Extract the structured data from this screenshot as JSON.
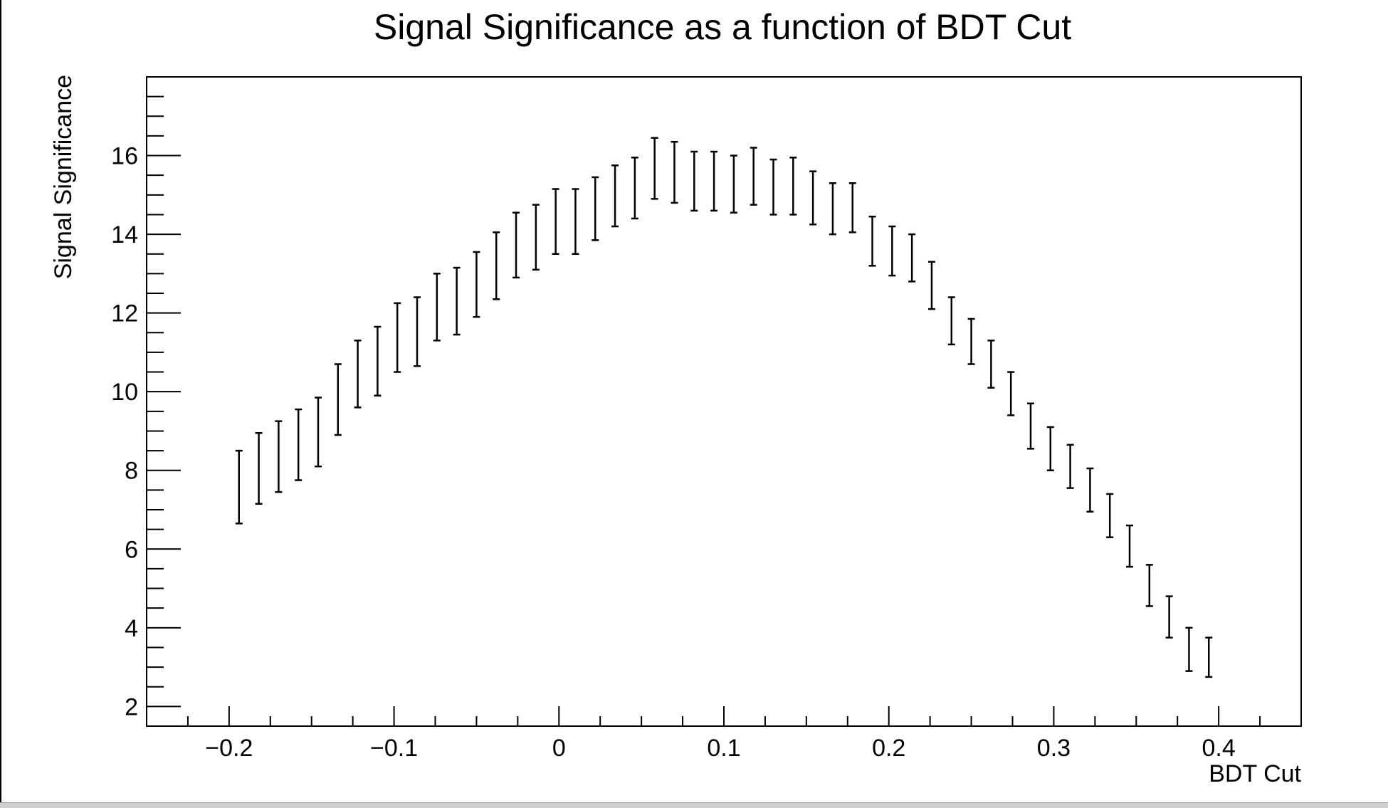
{
  "chart_data": {
    "type": "scatter",
    "title": "Signal Significance as a function of BDT Cut",
    "xlabel": "BDT Cut",
    "ylabel": "Signal Significance",
    "xlim": [
      -0.25,
      0.45
    ],
    "ylim": [
      1.5,
      18.0
    ],
    "xticks": [
      -0.2,
      -0.1,
      0,
      0.1,
      0.2,
      0.3,
      0.4
    ],
    "xtick_labels": [
      "−0.2",
      "−0.1",
      "0",
      "0.1",
      "0.2",
      "0.3",
      "0.4"
    ],
    "yticks": [
      2,
      4,
      6,
      8,
      10,
      12,
      14,
      16
    ],
    "ytick_labels": [
      "2",
      "4",
      "6",
      "8",
      "10",
      "12",
      "14",
      "16"
    ],
    "grid": false,
    "series": [
      {
        "points": [
          {
            "x": -0.194,
            "lo": 6.65,
            "hi": 8.5
          },
          {
            "x": -0.182,
            "lo": 7.15,
            "hi": 8.95
          },
          {
            "x": -0.17,
            "lo": 7.45,
            "hi": 9.25
          },
          {
            "x": -0.158,
            "lo": 7.75,
            "hi": 9.55
          },
          {
            "x": -0.146,
            "lo": 8.1,
            "hi": 9.85
          },
          {
            "x": -0.134,
            "lo": 8.9,
            "hi": 10.7
          },
          {
            "x": -0.122,
            "lo": 9.6,
            "hi": 11.3
          },
          {
            "x": -0.11,
            "lo": 9.9,
            "hi": 11.65
          },
          {
            "x": -0.098,
            "lo": 10.5,
            "hi": 12.25
          },
          {
            "x": -0.086,
            "lo": 10.65,
            "hi": 12.4
          },
          {
            "x": -0.074,
            "lo": 11.3,
            "hi": 13.0
          },
          {
            "x": -0.062,
            "lo": 11.45,
            "hi": 13.15
          },
          {
            "x": -0.05,
            "lo": 11.9,
            "hi": 13.55
          },
          {
            "x": -0.038,
            "lo": 12.35,
            "hi": 14.05
          },
          {
            "x": -0.026,
            "lo": 12.9,
            "hi": 14.55
          },
          {
            "x": -0.014,
            "lo": 13.1,
            "hi": 14.75
          },
          {
            "x": -0.002,
            "lo": 13.5,
            "hi": 15.15
          },
          {
            "x": 0.01,
            "lo": 13.5,
            "hi": 15.15
          },
          {
            "x": 0.022,
            "lo": 13.85,
            "hi": 15.45
          },
          {
            "x": 0.034,
            "lo": 14.2,
            "hi": 15.75
          },
          {
            "x": 0.046,
            "lo": 14.4,
            "hi": 15.95
          },
          {
            "x": 0.058,
            "lo": 14.9,
            "hi": 16.45
          },
          {
            "x": 0.07,
            "lo": 14.8,
            "hi": 16.35
          },
          {
            "x": 0.082,
            "lo": 14.6,
            "hi": 16.1
          },
          {
            "x": 0.094,
            "lo": 14.6,
            "hi": 16.1
          },
          {
            "x": 0.106,
            "lo": 14.55,
            "hi": 16.0
          },
          {
            "x": 0.118,
            "lo": 14.75,
            "hi": 16.2
          },
          {
            "x": 0.13,
            "lo": 14.5,
            "hi": 15.9
          },
          {
            "x": 0.142,
            "lo": 14.5,
            "hi": 15.95
          },
          {
            "x": 0.154,
            "lo": 14.25,
            "hi": 15.6
          },
          {
            "x": 0.166,
            "lo": 14.0,
            "hi": 15.3
          },
          {
            "x": 0.178,
            "lo": 14.05,
            "hi": 15.3
          },
          {
            "x": 0.19,
            "lo": 13.2,
            "hi": 14.45
          },
          {
            "x": 0.202,
            "lo": 12.95,
            "hi": 14.2
          },
          {
            "x": 0.214,
            "lo": 12.8,
            "hi": 14.0
          },
          {
            "x": 0.226,
            "lo": 12.1,
            "hi": 13.3
          },
          {
            "x": 0.238,
            "lo": 11.2,
            "hi": 12.4
          },
          {
            "x": 0.25,
            "lo": 10.7,
            "hi": 11.85
          },
          {
            "x": 0.262,
            "lo": 10.1,
            "hi": 11.3
          },
          {
            "x": 0.274,
            "lo": 9.4,
            "hi": 10.5
          },
          {
            "x": 0.286,
            "lo": 8.55,
            "hi": 9.7
          },
          {
            "x": 0.298,
            "lo": 8.0,
            "hi": 9.1
          },
          {
            "x": 0.31,
            "lo": 7.55,
            "hi": 8.65
          },
          {
            "x": 0.322,
            "lo": 6.95,
            "hi": 8.05
          },
          {
            "x": 0.334,
            "lo": 6.3,
            "hi": 7.4
          },
          {
            "x": 0.346,
            "lo": 5.55,
            "hi": 6.6
          },
          {
            "x": 0.358,
            "lo": 4.55,
            "hi": 5.6
          },
          {
            "x": 0.37,
            "lo": 3.75,
            "hi": 4.8
          },
          {
            "x": 0.382,
            "lo": 2.9,
            "hi": 4.0
          },
          {
            "x": 0.394,
            "lo": 2.75,
            "hi": 3.75
          }
        ]
      }
    ]
  }
}
